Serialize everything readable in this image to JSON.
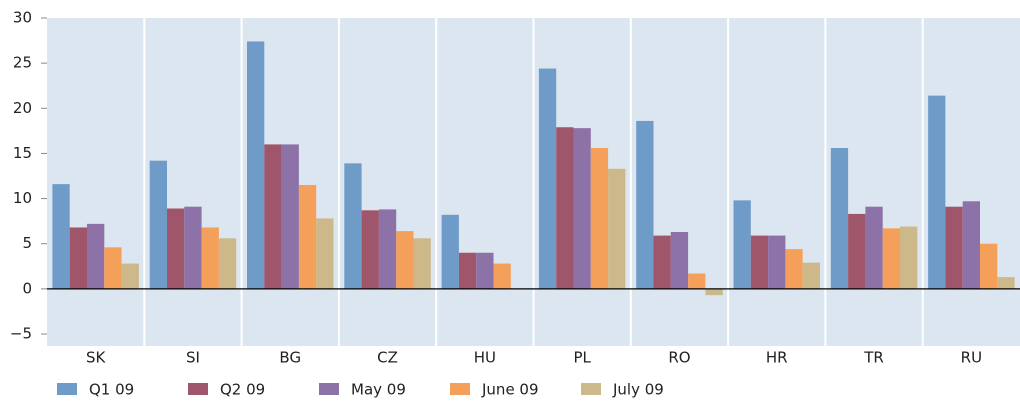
{
  "chart_data": {
    "type": "bar",
    "categories": [
      "SK",
      "SI",
      "BG",
      "CZ",
      "HU",
      "PL",
      "RO",
      "HR",
      "TR",
      "RU"
    ],
    "series": [
      {
        "name": "Q1 09",
        "color": "#6f9bc8",
        "values": [
          11.6,
          14.2,
          27.4,
          13.9,
          8.2,
          24.4,
          18.6,
          9.8,
          15.6,
          21.4
        ]
      },
      {
        "name": "Q2 09",
        "color": "#a0566a",
        "values": [
          6.8,
          8.9,
          16.0,
          8.7,
          4.0,
          17.9,
          5.9,
          5.9,
          8.3,
          9.1
        ]
      },
      {
        "name": "May 09",
        "color": "#8d72a8",
        "values": [
          7.2,
          9.1,
          16.0,
          8.8,
          4.0,
          17.8,
          6.3,
          5.9,
          9.1,
          9.7
        ]
      },
      {
        "name": "June 09",
        "color": "#f5a05a",
        "values": [
          4.6,
          6.8,
          11.5,
          6.4,
          2.8,
          15.6,
          1.7,
          4.4,
          6.7,
          5.0
        ]
      },
      {
        "name": "July 09",
        "color": "#cdb88a",
        "values": [
          2.8,
          5.6,
          7.8,
          5.6,
          null,
          13.3,
          -0.7,
          2.9,
          6.9,
          1.3
        ]
      }
    ],
    "ylim": [
      -5,
      30
    ],
    "yticks": [
      {
        "value": -5,
        "label": "−5"
      },
      0,
      5,
      10,
      15,
      20,
      25,
      30
    ],
    "grid": true
  }
}
